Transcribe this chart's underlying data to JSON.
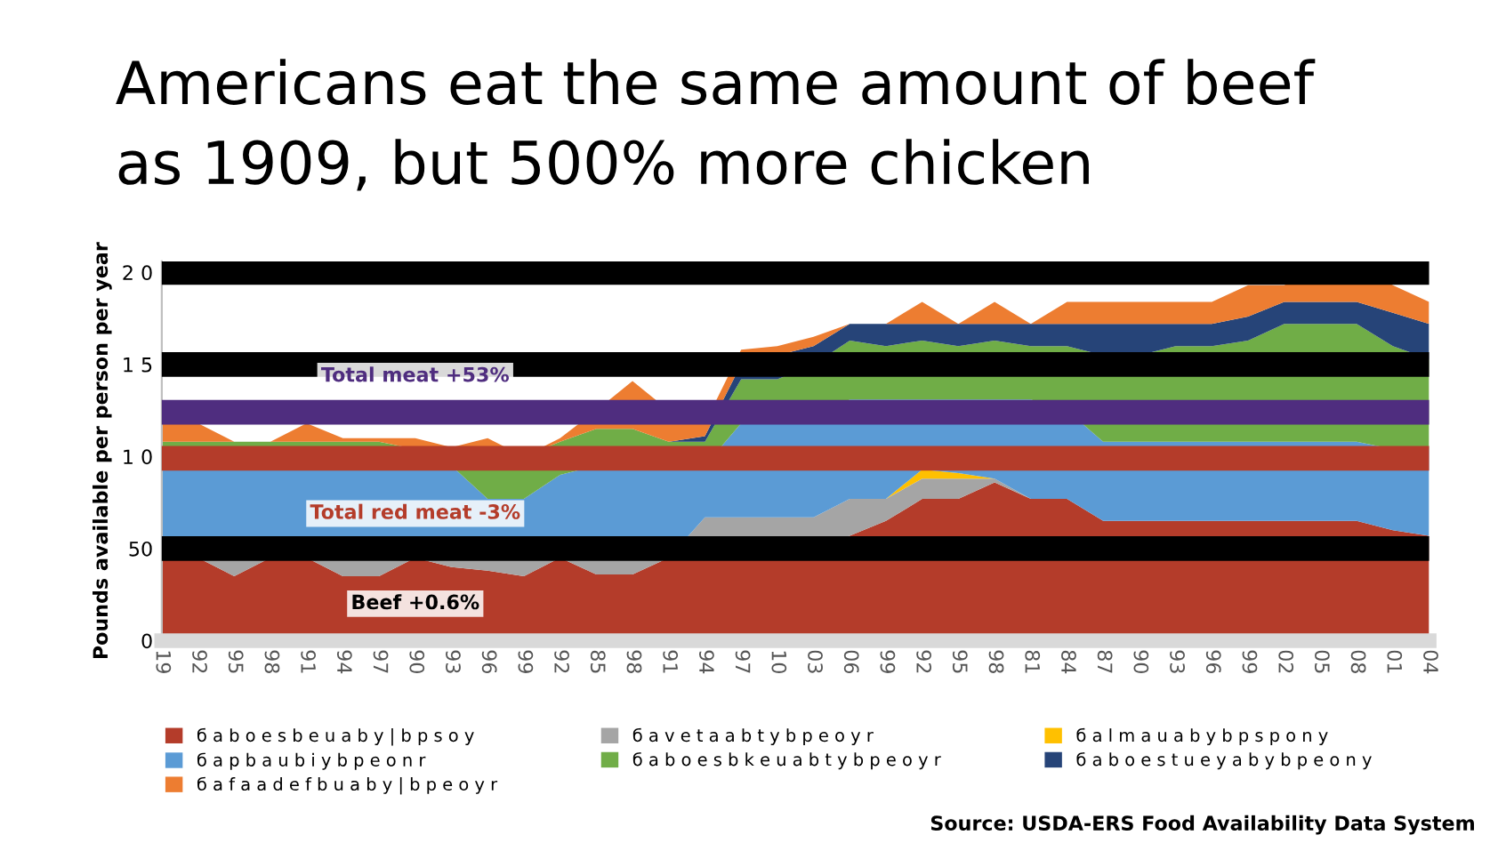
{
  "chart_data": {
    "type": "area",
    "stacked": true,
    "title": "Americans eat the same amount of beef\nas 1909, but 500% more chicken",
    "ylabel": "Pounds available per person per year",
    "categories": [
      "19",
      "92",
      "95",
      "98",
      "91",
      "94",
      "97",
      "90",
      "93",
      "96",
      "99",
      "92",
      "85",
      "98",
      "91",
      "94",
      "97",
      "10",
      "03",
      "06",
      "99",
      "92",
      "95",
      "98",
      "81",
      "84",
      "87",
      "90",
      "93",
      "96",
      "99",
      "02",
      "05",
      "08",
      "01",
      "04"
    ],
    "series": [
      {
        "name": "б a b o e s b e u a b y | b p s o y",
        "color": "#b43c2a",
        "values": [
          45,
          45,
          35,
          45,
          45,
          35,
          35,
          45,
          40,
          38,
          35,
          45,
          36,
          36,
          45,
          45,
          45,
          45,
          50,
          57,
          65,
          77,
          77,
          86,
          77,
          77,
          65,
          65,
          65,
          65,
          65,
          65,
          65,
          65,
          60,
          57
        ]
      },
      {
        "name": "б a v e t a a b t y b p e o y r",
        "color": "#a5a5a5",
        "values": [
          0,
          0,
          10,
          0,
          0,
          10,
          10,
          0,
          5,
          7,
          10,
          0,
          9,
          9,
          0,
          22,
          22,
          22,
          17,
          20,
          12,
          11,
          11,
          2,
          0,
          0,
          0,
          0,
          0,
          0,
          0,
          0,
          0,
          0,
          0,
          0
        ]
      },
      {
        "name": "б a l m a u a b y b p s p o n y",
        "color": "#ffc000",
        "values": [
          0,
          0,
          0,
          0,
          0,
          0,
          0,
          3,
          3,
          0,
          0,
          0,
          0,
          0,
          0,
          0,
          0,
          0,
          0,
          0,
          0,
          5,
          3,
          0,
          0,
          0,
          0,
          0,
          0,
          0,
          0,
          0,
          0,
          0,
          0,
          0
        ]
      },
      {
        "name": "б a p b a u b i y b p e o n r",
        "color": "#5b9bd5",
        "values": [
          50,
          50,
          50,
          50,
          50,
          50,
          50,
          47,
          47,
          32,
          32,
          45,
          50,
          50,
          50,
          28,
          51,
          51,
          51,
          54,
          54,
          38,
          40,
          43,
          54,
          48,
          43,
          43,
          43,
          43,
          43,
          43,
          43,
          43,
          44,
          47
        ]
      },
      {
        "name": "б a b o e s b k e u a b t y b p e o y r",
        "color": "#70ad47",
        "values": [
          13,
          13,
          13,
          13,
          13,
          13,
          13,
          9,
          9,
          23,
          23,
          18,
          20,
          20,
          13,
          13,
          24,
          24,
          32,
          32,
          29,
          32,
          29,
          32,
          29,
          35,
          47,
          47,
          52,
          52,
          55,
          64,
          64,
          64,
          56,
          49
        ]
      },
      {
        "name": "б a b o e s t u e y a b y b p e o n y",
        "color": "#264478",
        "values": [
          0,
          0,
          0,
          0,
          0,
          0,
          0,
          0,
          0,
          0,
          0,
          0,
          0,
          0,
          0,
          3,
          8,
          13,
          10,
          9,
          12,
          9,
          12,
          9,
          12,
          12,
          17,
          17,
          12,
          12,
          13,
          12,
          12,
          12,
          18,
          19
        ]
      },
      {
        "name": "б a f a a d e f b u a b y | b p e o y r",
        "color": "#ed7d31",
        "values": [
          10,
          10,
          0,
          0,
          10,
          2,
          2,
          6,
          1,
          10,
          0,
          2,
          10,
          26,
          17,
          7,
          8,
          5,
          5,
          0,
          0,
          12,
          0,
          12,
          0,
          12,
          12,
          12,
          12,
          12,
          17,
          9,
          20,
          20,
          15,
          12
        ]
      }
    ],
    "ylim": [
      0,
      206
    ],
    "yticks": [
      0,
      50,
      {
        "value": 100,
        "label": "1 0"
      },
      {
        "value": 150,
        "label": "1 5"
      },
      {
        "value": 200,
        "label": "2 0"
      }
    ],
    "ref_lines": [
      {
        "axis": "y",
        "value": 50,
        "label": "Beef +0.6%",
        "color": "#000000"
      },
      {
        "axis": "y",
        "value": 150,
        "color": "#000000"
      },
      {
        "axis": "y",
        "value": 200,
        "color": "#000000"
      },
      {
        "axis": "y",
        "value": 99,
        "label": "Total red meat -3%",
        "color": "#b43c2a"
      },
      {
        "axis": "y",
        "value": 124,
        "label": "Total meat +53%",
        "color": "#4f2d7f"
      }
    ],
    "legend": "bottom",
    "annotations": [
      "Source: USDA-ERS Food Availability Data System"
    ]
  }
}
